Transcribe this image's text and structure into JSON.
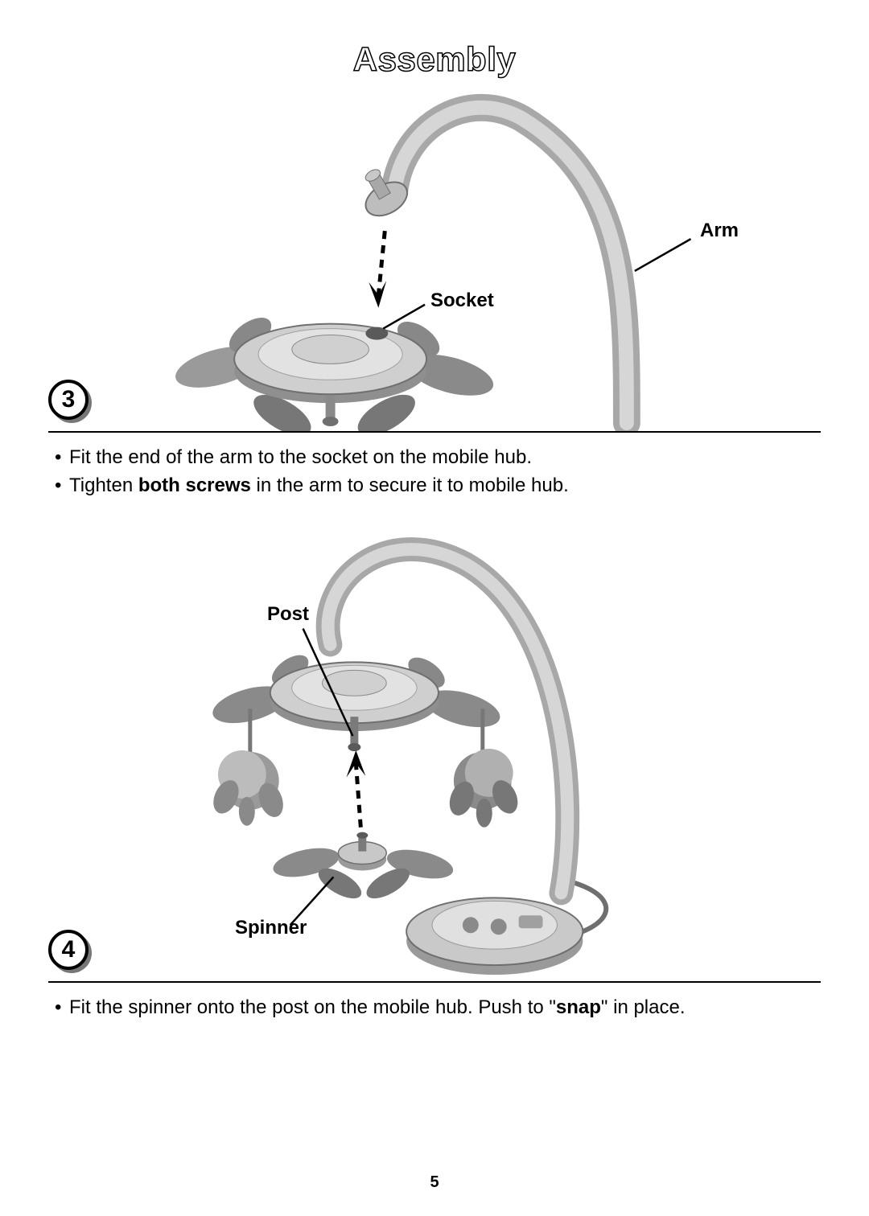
{
  "title": "Assembly",
  "page_number": "5",
  "colors": {
    "text": "#000000",
    "bg": "#ffffff",
    "shade_light": "#cfcfcf",
    "shade_mid": "#a8a8a8",
    "shade_dark": "#6f6f6f",
    "badge_shadow": "#777777"
  },
  "step3": {
    "number": "3",
    "callouts": {
      "arm": "Arm",
      "socket": "Socket"
    },
    "instructions": [
      {
        "segments": [
          {
            "text": "Fit the end of the arm to the socket on the mobile hub.",
            "bold": false
          }
        ]
      },
      {
        "segments": [
          {
            "text": "Tighten ",
            "bold": false
          },
          {
            "text": "both screws",
            "bold": true
          },
          {
            "text": " in the arm to secure it to mobile hub.",
            "bold": false
          }
        ]
      }
    ]
  },
  "step4": {
    "number": "4",
    "callouts": {
      "post": "Post",
      "spinner": "Spinner"
    },
    "instructions": [
      {
        "segments": [
          {
            "text": "Fit the spinner onto the post on the mobile hub. Push to \"",
            "bold": false
          },
          {
            "text": "snap",
            "bold": true
          },
          {
            "text": "\" in place.",
            "bold": false
          }
        ]
      }
    ]
  }
}
